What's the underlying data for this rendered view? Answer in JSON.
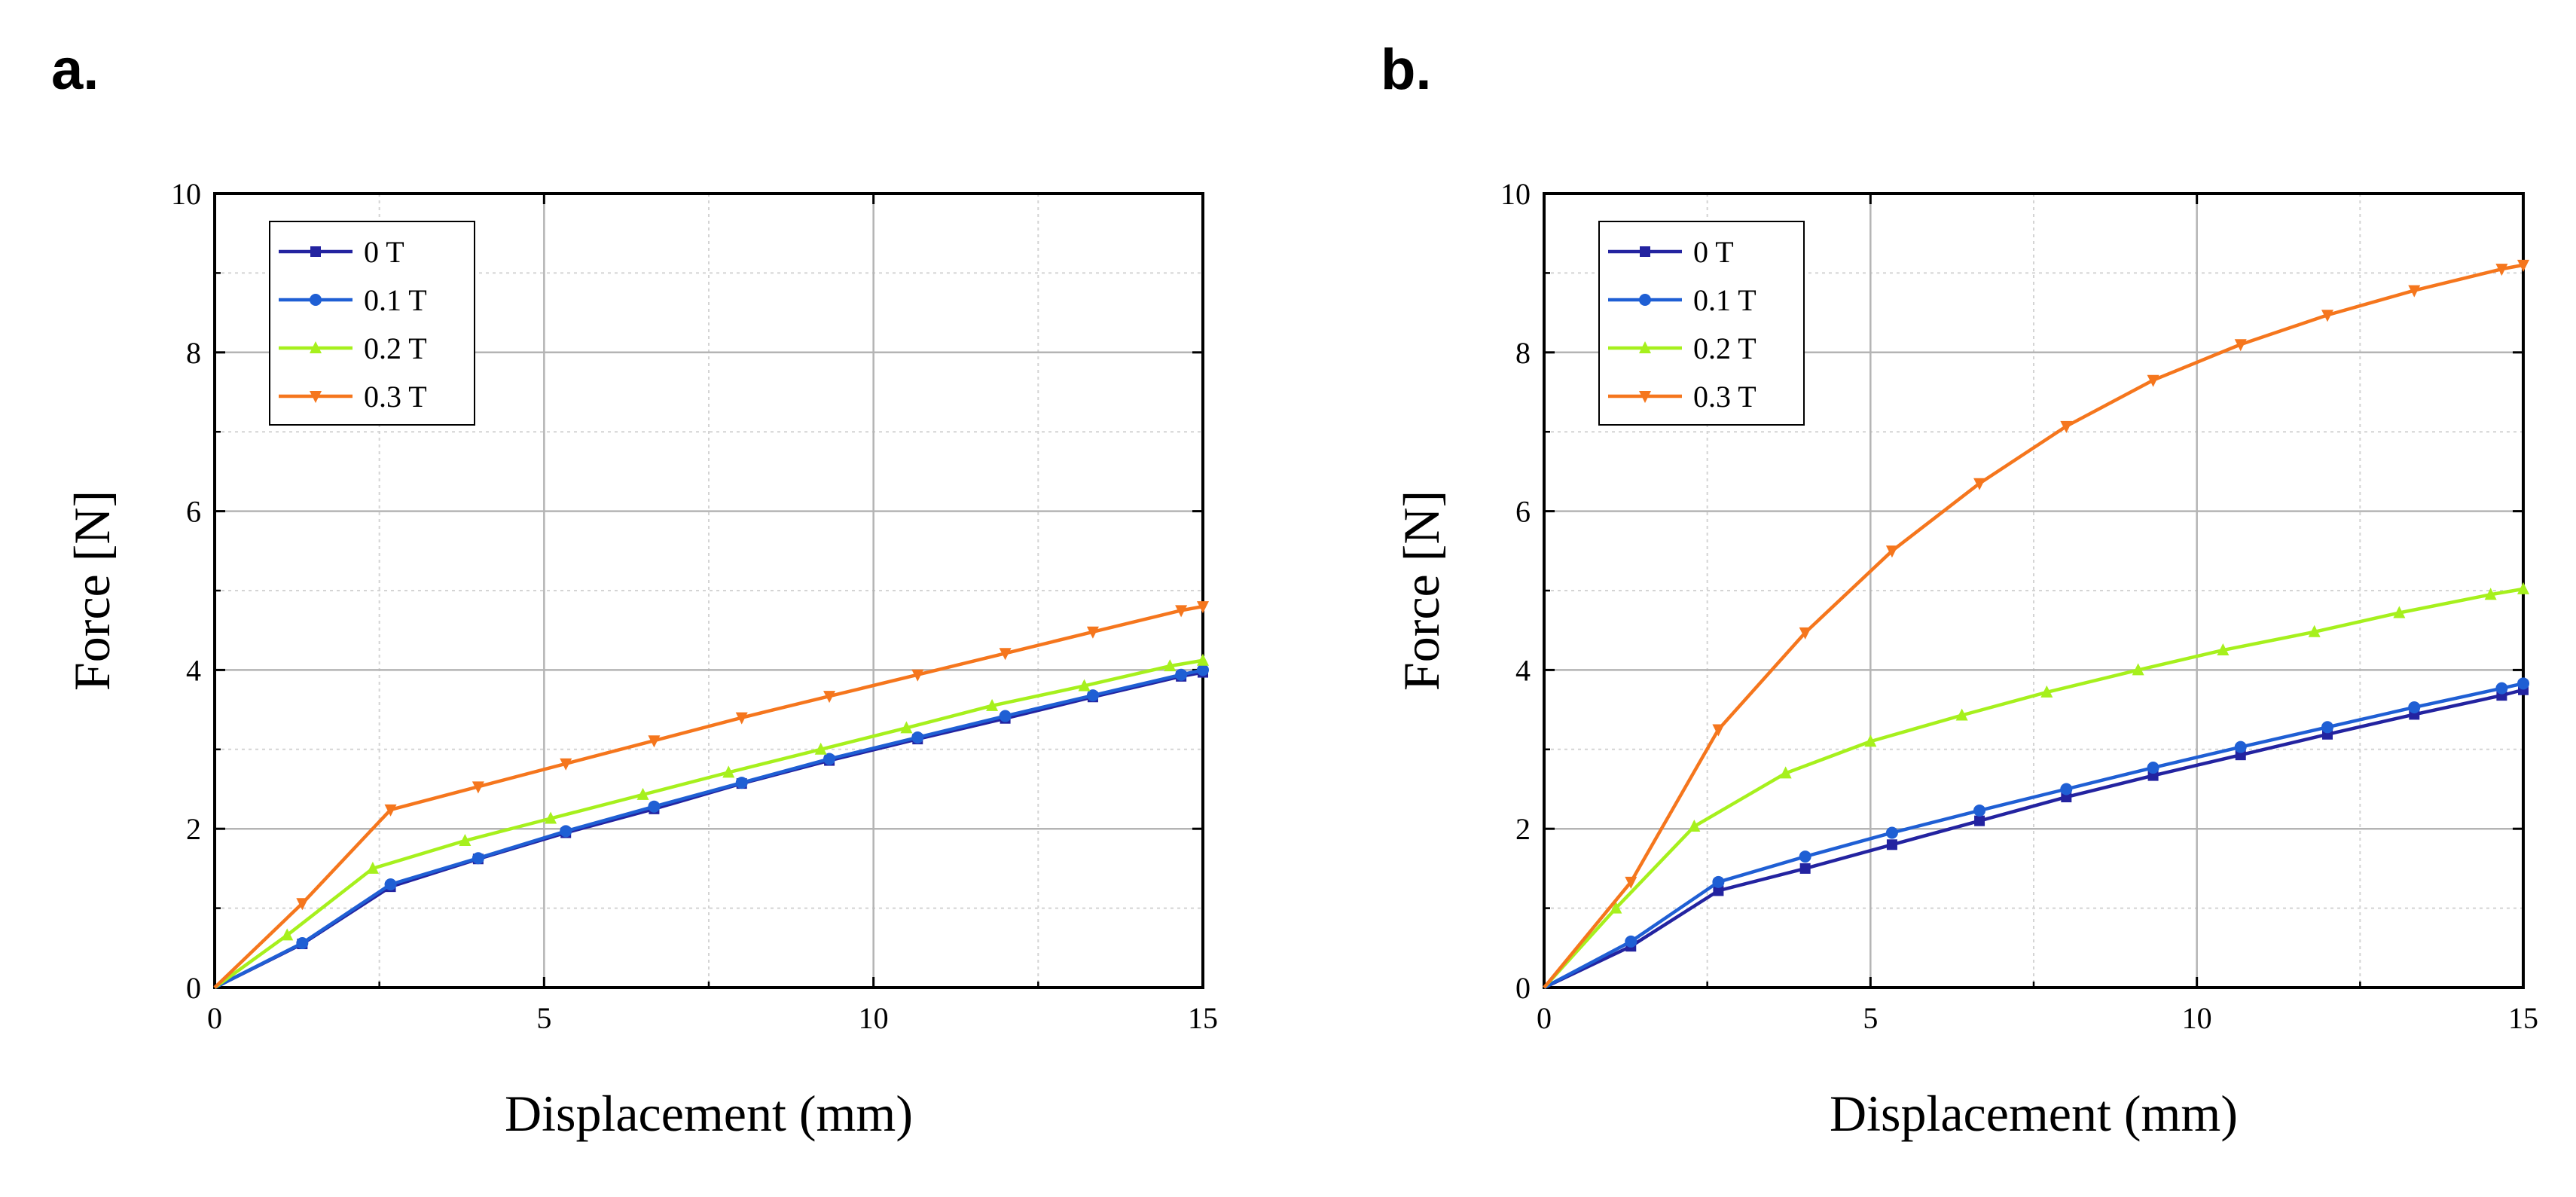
{
  "chart_data": [
    {
      "panel": "a.",
      "type": "line",
      "xlabel": "Displacement (mm)",
      "ylabel": "Force [N]",
      "xlim": [
        0,
        15
      ],
      "ylim": [
        0,
        10
      ],
      "xticks": [
        0,
        5,
        10,
        15
      ],
      "yticks": [
        0,
        2,
        4,
        6,
        8,
        10
      ],
      "grid": true,
      "legend_position": "top-left",
      "series": [
        {
          "name": "0 T",
          "color": "#2323a0",
          "marker": "square",
          "x": [
            0,
            1.33,
            2.67,
            4.0,
            5.33,
            6.67,
            8.0,
            9.33,
            10.67,
            12.0,
            13.33,
            14.67,
            15.0
          ],
          "y": [
            0,
            0.55,
            1.27,
            1.62,
            1.95,
            2.25,
            2.57,
            2.86,
            3.13,
            3.39,
            3.66,
            3.92,
            3.97
          ]
        },
        {
          "name": "0.1 T",
          "color": "#1f5fd4",
          "marker": "circle",
          "x": [
            0,
            1.33,
            2.67,
            4.0,
            5.33,
            6.67,
            8.0,
            9.33,
            10.67,
            12.0,
            13.33,
            14.67,
            15.0
          ],
          "y": [
            0,
            0.56,
            1.3,
            1.63,
            1.97,
            2.28,
            2.58,
            2.88,
            3.15,
            3.42,
            3.68,
            3.94,
            4.0
          ]
        },
        {
          "name": "0.2 T",
          "color": "#a6f01d",
          "marker": "triangle-up",
          "x": [
            0,
            1.1,
            2.4,
            3.8,
            5.1,
            6.5,
            7.8,
            9.2,
            10.5,
            11.8,
            13.2,
            14.5,
            15.0
          ],
          "y": [
            0,
            0.66,
            1.5,
            1.85,
            2.13,
            2.43,
            2.71,
            3.0,
            3.27,
            3.55,
            3.8,
            4.05,
            4.12
          ]
        },
        {
          "name": "0.3 T",
          "color": "#f5761d",
          "marker": "triangle-down",
          "x": [
            0,
            1.33,
            2.67,
            4.0,
            5.33,
            6.67,
            8.0,
            9.33,
            10.67,
            12.0,
            13.33,
            14.67,
            15.0
          ],
          "y": [
            0,
            1.06,
            2.24,
            2.53,
            2.82,
            3.11,
            3.4,
            3.67,
            3.94,
            4.21,
            4.48,
            4.75,
            4.8
          ]
        }
      ]
    },
    {
      "panel": "b.",
      "type": "line",
      "xlabel": "Displacement (mm)",
      "ylabel": "Force [N]",
      "xlim": [
        0,
        15
      ],
      "ylim": [
        0,
        10
      ],
      "xticks": [
        0,
        5,
        10,
        15
      ],
      "yticks": [
        0,
        2,
        4,
        6,
        8,
        10
      ],
      "grid": true,
      "legend_position": "top-left",
      "series": [
        {
          "name": "0 T",
          "color": "#2323a0",
          "marker": "square",
          "x": [
            0,
            1.33,
            2.67,
            4.0,
            5.33,
            6.67,
            8.0,
            9.33,
            10.67,
            12.0,
            13.33,
            14.67,
            15.0
          ],
          "y": [
            0,
            0.52,
            1.22,
            1.5,
            1.8,
            2.1,
            2.4,
            2.67,
            2.93,
            3.19,
            3.44,
            3.68,
            3.75
          ]
        },
        {
          "name": "0.1 T",
          "color": "#1f5fd4",
          "marker": "circle",
          "x": [
            0,
            1.33,
            2.67,
            4.0,
            5.33,
            6.67,
            8.0,
            9.33,
            10.67,
            12.0,
            13.33,
            14.67,
            15.0
          ],
          "y": [
            0,
            0.58,
            1.33,
            1.65,
            1.95,
            2.23,
            2.5,
            2.77,
            3.03,
            3.28,
            3.53,
            3.77,
            3.83
          ]
        },
        {
          "name": "0.2 T",
          "color": "#a6f01d",
          "marker": "triangle-up",
          "x": [
            0,
            1.1,
            2.3,
            3.7,
            5.0,
            6.4,
            7.7,
            9.1,
            10.4,
            11.8,
            13.1,
            14.5,
            15.0
          ],
          "y": [
            0,
            1.0,
            2.03,
            2.7,
            3.1,
            3.43,
            3.72,
            4.0,
            4.25,
            4.48,
            4.72,
            4.95,
            5.02
          ]
        },
        {
          "name": "0.3 T",
          "color": "#f5761d",
          "marker": "triangle-down",
          "x": [
            0,
            1.33,
            2.67,
            4.0,
            5.33,
            6.67,
            8.0,
            9.33,
            10.67,
            12.0,
            13.33,
            14.67,
            15.0
          ],
          "y": [
            0,
            1.33,
            3.25,
            4.47,
            5.5,
            6.35,
            7.07,
            7.65,
            8.1,
            8.47,
            8.78,
            9.05,
            9.1
          ]
        }
      ]
    }
  ]
}
